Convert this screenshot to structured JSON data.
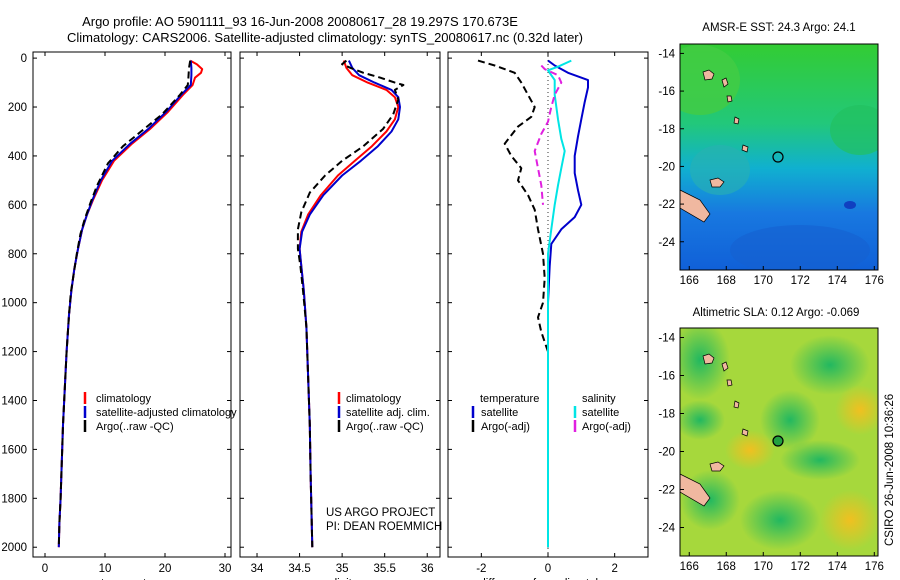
{
  "header": {
    "title_line1": "Argo profile: AO 5901111_93 16-Jun-2008 20080617_28 19.297S 170.673E",
    "title_line2": "Climatology: CARS2006. Satellite-adjusted climatology: synTS_20080617.nc (0.32d later)"
  },
  "credits": {
    "project": "US ARGO PROJECT",
    "pi": "PI: DEAN ROEMMICH",
    "stamp": "CSIRO 26-Jun-2008 10:36:26"
  },
  "colors": {
    "climatology": "#ff0000",
    "satellite": "#0000cc",
    "argo": "#000000",
    "satellite_sal": "#00e5e5",
    "argo_sal": "#e020e0"
  },
  "chart_data": [
    {
      "type": "line",
      "id": "temperature",
      "xlabel": "temperature",
      "ylabel": "",
      "xlim": [
        -2,
        31
      ],
      "ylim": [
        2040,
        -25
      ],
      "xticks": [
        0,
        10,
        20,
        30
      ],
      "yticks": [
        0,
        200,
        400,
        600,
        800,
        1000,
        1200,
        1400,
        1600,
        1800,
        2000
      ],
      "legend": [
        "climatology",
        "satellite-adjusted climatology",
        "Argo(..raw -QC)"
      ],
      "series": [
        {
          "name": "climatology",
          "color": "#ff0000",
          "dash": "",
          "points": [
            [
              24.2,
              10
            ],
            [
              25.3,
              25
            ],
            [
              26.2,
              45
            ],
            [
              26.0,
              60
            ],
            [
              25.0,
              80
            ],
            [
              24.6,
              110
            ],
            [
              23.0,
              150
            ],
            [
              20.5,
              220
            ],
            [
              17.5,
              290
            ],
            [
              14.5,
              350
            ],
            [
              11.5,
              420
            ],
            [
              9.5,
              500
            ],
            [
              8.0,
              580
            ],
            [
              7.0,
              640
            ],
            [
              6.2,
              700
            ],
            [
              5.5,
              780
            ],
            [
              4.9,
              860
            ],
            [
              4.4,
              950
            ],
            [
              4.0,
              1050
            ],
            [
              3.6,
              1200
            ],
            [
              3.3,
              1350
            ],
            [
              3.0,
              1500
            ],
            [
              2.8,
              1650
            ],
            [
              2.6,
              1800
            ],
            [
              2.4,
              1900
            ],
            [
              2.3,
              2000
            ]
          ]
        },
        {
          "name": "satellite-adjusted climatology",
          "color": "#0000cc",
          "dash": "",
          "points": [
            [
              24.3,
              10
            ],
            [
              24.4,
              40
            ],
            [
              24.4,
              70
            ],
            [
              24.3,
              110
            ],
            [
              22.7,
              150
            ],
            [
              20.2,
              220
            ],
            [
              17.2,
              290
            ],
            [
              14.2,
              350
            ],
            [
              11.2,
              420
            ],
            [
              9.3,
              500
            ],
            [
              7.9,
              580
            ],
            [
              7.0,
              640
            ],
            [
              6.2,
              700
            ],
            [
              5.5,
              780
            ],
            [
              4.9,
              860
            ],
            [
              4.4,
              950
            ],
            [
              4.0,
              1050
            ],
            [
              3.6,
              1200
            ],
            [
              3.3,
              1350
            ],
            [
              3.0,
              1500
            ],
            [
              2.8,
              1650
            ],
            [
              2.6,
              1800
            ],
            [
              2.4,
              1900
            ],
            [
              2.3,
              2000
            ]
          ]
        },
        {
          "name": "Argo(..raw -QC)",
          "color": "#000000",
          "dash": "7,4",
          "points": [
            [
              24.2,
              10
            ],
            [
              24.0,
              40
            ],
            [
              23.9,
              80
            ],
            [
              23.8,
              110
            ],
            [
              22.5,
              150
            ],
            [
              19.5,
              230
            ],
            [
              16.0,
              300
            ],
            [
              13.0,
              360
            ],
            [
              10.5,
              430
            ],
            [
              8.7,
              520
            ],
            [
              7.6,
              590
            ],
            [
              6.6,
              660
            ],
            [
              5.9,
              720
            ],
            [
              5.3,
              800
            ],
            [
              4.8,
              880
            ],
            [
              4.3,
              960
            ],
            [
              4.0,
              1050
            ],
            [
              3.6,
              1200
            ],
            [
              3.3,
              1350
            ],
            [
              3.0,
              1500
            ],
            [
              2.8,
              1650
            ],
            [
              2.6,
              1800
            ],
            [
              2.4,
              1900
            ],
            [
              2.3,
              2000
            ]
          ]
        }
      ]
    },
    {
      "type": "line",
      "id": "salinity",
      "xlabel": "salinity",
      "ylabel": "",
      "xlim": [
        33.8,
        36.15
      ],
      "ylim": [
        2040,
        -25
      ],
      "xticks": [
        34,
        34.5,
        35,
        35.5,
        36
      ],
      "legend": [
        "climatology",
        "satellite adj. clim.",
        "Argo(..raw -QC)"
      ],
      "series": [
        {
          "name": "climatology",
          "color": "#ff0000",
          "dash": "",
          "points": [
            [
              35.02,
              10
            ],
            [
              35.05,
              40
            ],
            [
              35.12,
              70
            ],
            [
              35.3,
              100
            ],
            [
              35.52,
              130
            ],
            [
              35.62,
              160
            ],
            [
              35.66,
              200
            ],
            [
              35.62,
              250
            ],
            [
              35.52,
              300
            ],
            [
              35.35,
              360
            ],
            [
              35.15,
              420
            ],
            [
              34.95,
              480
            ],
            [
              34.75,
              560
            ],
            [
              34.6,
              640
            ],
            [
              34.52,
              710
            ],
            [
              34.5,
              780
            ],
            [
              34.52,
              850
            ],
            [
              34.55,
              950
            ],
            [
              34.58,
              1100
            ],
            [
              34.6,
              1300
            ],
            [
              34.62,
              1500
            ],
            [
              34.63,
              1700
            ],
            [
              34.65,
              2000
            ]
          ]
        },
        {
          "name": "satellite adj. clim.",
          "color": "#0000cc",
          "dash": "",
          "points": [
            [
              35.08,
              10
            ],
            [
              35.12,
              40
            ],
            [
              35.2,
              70
            ],
            [
              35.38,
              100
            ],
            [
              35.58,
              130
            ],
            [
              35.66,
              160
            ],
            [
              35.68,
              200
            ],
            [
              35.66,
              250
            ],
            [
              35.58,
              300
            ],
            [
              35.42,
              360
            ],
            [
              35.22,
              420
            ],
            [
              35.0,
              480
            ],
            [
              34.78,
              560
            ],
            [
              34.62,
              640
            ],
            [
              34.53,
              710
            ],
            [
              34.5,
              780
            ],
            [
              34.52,
              850
            ],
            [
              34.55,
              950
            ],
            [
              34.58,
              1100
            ],
            [
              34.6,
              1300
            ],
            [
              34.62,
              1500
            ],
            [
              34.63,
              1700
            ],
            [
              34.65,
              2000
            ]
          ]
        },
        {
          "name": "Argo(..raw -QC)",
          "color": "#000000",
          "dash": "7,4",
          "points": [
            [
              35.05,
              10
            ],
            [
              35.0,
              25
            ],
            [
              35.1,
              40
            ],
            [
              35.25,
              60
            ],
            [
              35.45,
              80
            ],
            [
              35.62,
              100
            ],
            [
              35.72,
              110
            ],
            [
              35.62,
              130
            ],
            [
              35.66,
              170
            ],
            [
              35.6,
              230
            ],
            [
              35.48,
              290
            ],
            [
              35.25,
              360
            ],
            [
              35.0,
              420
            ],
            [
              34.8,
              480
            ],
            [
              34.62,
              550
            ],
            [
              34.52,
              630
            ],
            [
              34.48,
              700
            ],
            [
              34.48,
              780
            ],
            [
              34.51,
              850
            ],
            [
              34.54,
              950
            ],
            [
              34.58,
              1100
            ],
            [
              34.6,
              1300
            ],
            [
              34.62,
              1500
            ],
            [
              34.63,
              1700
            ],
            [
              34.65,
              2000
            ]
          ]
        }
      ]
    },
    {
      "type": "line",
      "id": "difference",
      "xlabel": "difference from climatology",
      "ylabel": "",
      "xlim": [
        -3,
        3
      ],
      "ylim": [
        2040,
        -25
      ],
      "xticks": [
        -2,
        0,
        2
      ],
      "legend_title_t": "temperature",
      "legend_title_s": "salinity",
      "legend": [
        "satellite",
        "Argo(-adj)",
        "satellite",
        "Argo(-adj)"
      ],
      "series": [
        {
          "name": "satellite (temperature)",
          "color": "#0000cc",
          "dash": "",
          "points": [
            [
              0.0,
              10
            ],
            [
              0.2,
              30
            ],
            [
              0.6,
              60
            ],
            [
              1.2,
              90
            ],
            [
              1.2,
              120
            ],
            [
              1.1,
              180
            ],
            [
              1.0,
              250
            ],
            [
              0.9,
              320
            ],
            [
              0.8,
              400
            ],
            [
              0.8,
              470
            ],
            [
              0.9,
              540
            ],
            [
              1.0,
              600
            ],
            [
              0.8,
              650
            ],
            [
              0.4,
              700
            ],
            [
              0.1,
              760
            ],
            [
              0.05,
              850
            ],
            [
              0.0,
              1000
            ],
            [
              0.0,
              2000
            ]
          ]
        },
        {
          "name": "Argo(-adj) (temperature)",
          "color": "#000000",
          "dash": "7,4",
          "points": [
            [
              -2.1,
              10
            ],
            [
              -1.6,
              30
            ],
            [
              -1.0,
              60
            ],
            [
              -0.8,
              100
            ],
            [
              -0.6,
              150
            ],
            [
              -0.4,
              200
            ],
            [
              -0.5,
              240
            ],
            [
              -0.9,
              280
            ],
            [
              -1.3,
              350
            ],
            [
              -1.1,
              400
            ],
            [
              -0.8,
              450
            ],
            [
              -0.9,
              500
            ],
            [
              -0.6,
              560
            ],
            [
              -0.4,
              620
            ],
            [
              -0.3,
              700
            ],
            [
              -0.15,
              800
            ],
            [
              -0.1,
              900
            ],
            [
              -0.15,
              1000
            ],
            [
              -0.3,
              1060
            ],
            [
              -0.2,
              1120
            ],
            [
              0.0,
              1200
            ],
            [
              0.0,
              2000
            ]
          ]
        },
        {
          "name": "satellite (salinity)",
          "color": "#00e5e5",
          "dash": "",
          "points": [
            [
              0.7,
              10
            ],
            [
              0.3,
              35
            ],
            [
              0.0,
              50
            ],
            [
              0.1,
              70
            ],
            [
              0.2,
              90
            ],
            [
              0.2,
              150
            ],
            [
              0.3,
              250
            ],
            [
              0.4,
              330
            ],
            [
              0.5,
              380
            ],
            [
              0.4,
              450
            ],
            [
              0.3,
              520
            ],
            [
              0.2,
              600
            ],
            [
              0.1,
              700
            ],
            [
              0.0,
              800
            ],
            [
              0.0,
              2000
            ]
          ]
        },
        {
          "name": "Argo(-adj) (salinity)",
          "color": "#e020e0",
          "dash": "7,4",
          "points": [
            [
              -0.2,
              30
            ],
            [
              -0.1,
              45
            ],
            [
              0.3,
              70
            ],
            [
              0.4,
              100
            ],
            [
              0.2,
              150
            ],
            [
              0.1,
              200
            ],
            [
              0.0,
              260
            ],
            [
              -0.2,
              310
            ],
            [
              -0.4,
              380
            ],
            [
              -0.3,
              450
            ],
            [
              -0.2,
              520
            ],
            [
              -0.15,
              600
            ]
          ]
        }
      ]
    },
    {
      "type": "heatmap",
      "id": "sst_map",
      "title": "AMSR-E SST: 24.3 Argo: 24.1",
      "xlim": [
        165.5,
        176.2
      ],
      "ylim": [
        -25.5,
        -13.5
      ],
      "xticks": [
        166,
        168,
        170,
        172,
        174,
        176
      ],
      "yticks": [
        -14,
        -16,
        -18,
        -20,
        -22,
        -24
      ]
    },
    {
      "type": "heatmap",
      "id": "sla_map",
      "title": "Altimetric SLA: 0.12 Argo: -0.069",
      "xlim": [
        165.5,
        176.2
      ],
      "ylim": [
        -25.5,
        -13.5
      ],
      "xticks": [
        166,
        168,
        170,
        172,
        174,
        176
      ],
      "yticks": [
        -14,
        -16,
        -18,
        -20,
        -22,
        -24
      ]
    }
  ]
}
